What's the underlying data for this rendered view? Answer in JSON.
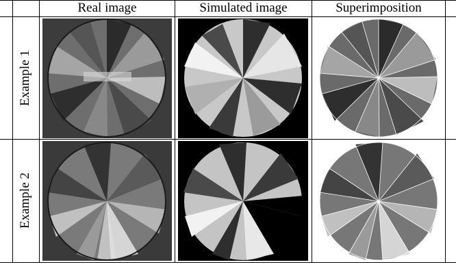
{
  "table": {
    "headers": {
      "real": "Real image",
      "simulated": "Simulated image",
      "superimposition": "Superimposition"
    },
    "rows": [
      {
        "label": "Example 1"
      },
      {
        "label": "Example 2"
      }
    ]
  },
  "colors": {
    "real_background": "#3a3a3a",
    "simulated_background": "#000000",
    "disc_light": "#c8c8c8",
    "disc_dark": "#2e2e2e",
    "overlay_edges": "#ffffff"
  },
  "icons": [
    "fisheye-disc"
  ]
}
